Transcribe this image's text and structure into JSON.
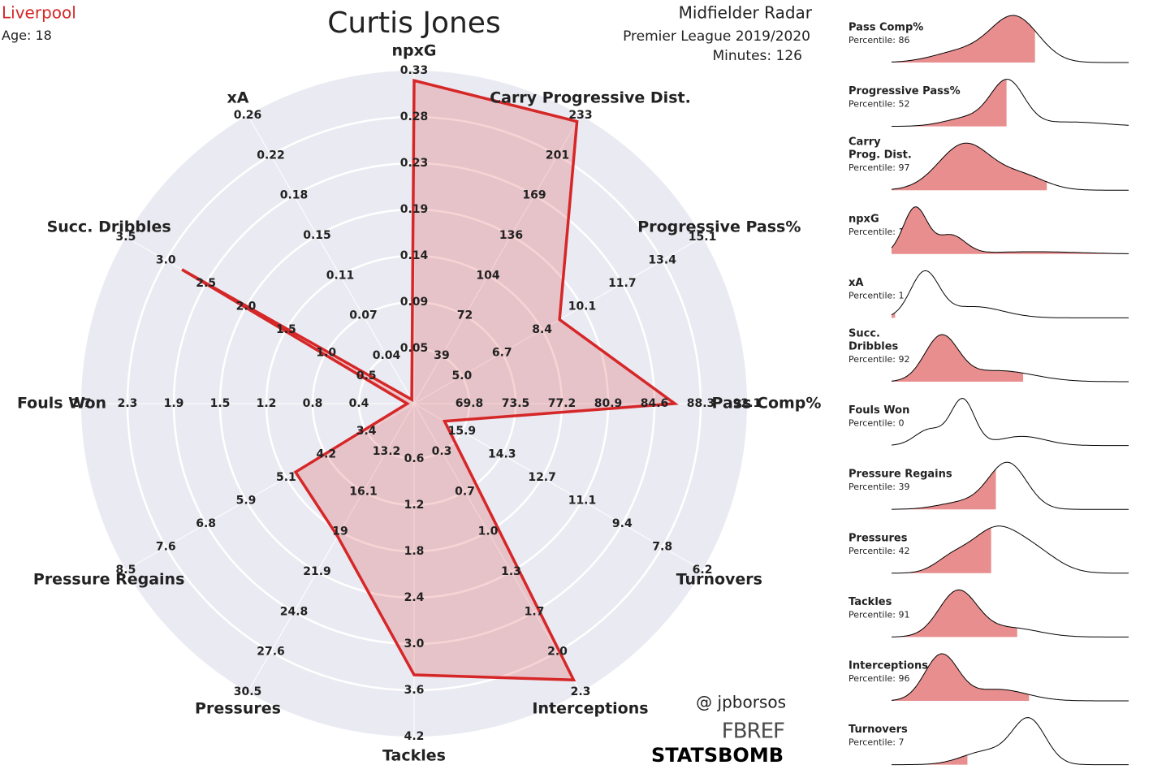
{
  "header": {
    "team": "Liverpool",
    "age_label": "Age:",
    "age": 18,
    "player": "Curtis Jones",
    "radar_title": "Midfielder Radar",
    "competition": "Premier League 2019/2020",
    "minutes_label": "Minutes:",
    "minutes": 126
  },
  "chart_data": {
    "type": "radar",
    "color": "#d62728",
    "fill_color": "rgba(214,39,40,0.2)",
    "categories": [
      "npxG",
      "Carry Progressive Dist.",
      "Progressive Pass%",
      "Pass Comp%",
      "Turnovers",
      "Interceptions",
      "Tackles",
      "Pressures",
      "Pressure Regains",
      "Fouls Won",
      "Succ. Dribbles",
      "xA"
    ],
    "values": [
      0.32,
      228,
      9.1,
      86.3,
      16.6,
      2.2,
      3.4,
      19.3,
      4.9,
      0.0,
      2.8,
      0.0
    ],
    "ticks": [
      [
        0.05,
        0.09,
        0.14,
        0.19,
        0.23,
        0.28,
        0.33
      ],
      [
        39,
        72,
        104,
        136,
        169,
        201,
        233
      ],
      [
        {
          "value": 5,
          "label": "5.0"
        },
        6.7,
        8.4,
        10.1,
        11.7,
        13.4,
        15.1
      ],
      [
        69.8,
        73.5,
        77.2,
        80.9,
        84.6,
        88.3,
        92.1
      ],
      [
        15.9,
        14.3,
        12.7,
        11.1,
        9.4,
        7.8,
        6.2
      ],
      [
        0.3,
        0.7,
        {
          "value": 1,
          "label": "1.0"
        },
        1.3,
        1.7,
        {
          "value": 2,
          "label": "2.0"
        },
        2.3
      ],
      [
        0.6,
        1.2,
        1.8,
        2.4,
        {
          "value": 3,
          "label": "3.0"
        },
        3.6,
        4.2
      ],
      [
        13.2,
        16.1,
        19.0,
        21.9,
        24.8,
        27.6,
        30.5
      ],
      [
        3.4,
        4.2,
        5.1,
        5.9,
        6.8,
        7.6,
        8.5
      ],
      [
        0.4,
        0.8,
        1.2,
        1.5,
        1.9,
        2.3,
        2.7
      ],
      [
        0.5,
        {
          "value": 1,
          "label": "1.0"
        },
        1.5,
        {
          "value": 2,
          "label": "2.0"
        },
        2.5,
        {
          "value": 3,
          "label": "3.0"
        },
        3.5
      ],
      [
        0.04,
        0.07,
        0.11,
        0.15,
        0.18,
        0.22,
        0.26
      ]
    ]
  },
  "distributions": {
    "percentile_label": "Percentile:",
    "fill_color": "#e88e8e",
    "items": [
      {
        "name": [
          "Pass Comp%"
        ],
        "percentile": 86
      },
      {
        "name": [
          "Progressive Pass%"
        ],
        "percentile": 52
      },
      {
        "name": [
          "Carry",
          "Prog. Dist."
        ],
        "percentile": 97
      },
      {
        "name": [
          "npxG"
        ],
        "percentile": 100
      },
      {
        "name": [
          "xA"
        ],
        "percentile": 1
      },
      {
        "name": [
          "Succ.",
          "Dribbles"
        ],
        "percentile": 92
      },
      {
        "name": [
          "Fouls Won"
        ],
        "percentile": 0
      },
      {
        "name": [
          "Pressure Regains"
        ],
        "percentile": 39
      },
      {
        "name": [
          "Pressures"
        ],
        "percentile": 42
      },
      {
        "name": [
          "Tackles"
        ],
        "percentile": 91
      },
      {
        "name": [
          "Interceptions"
        ],
        "percentile": 96
      },
      {
        "name": [
          "Turnovers"
        ],
        "percentile": 7
      }
    ]
  },
  "credits": {
    "author": "@ jpborsos",
    "logos": [
      "FBREF",
      "STATSBOMB"
    ]
  }
}
